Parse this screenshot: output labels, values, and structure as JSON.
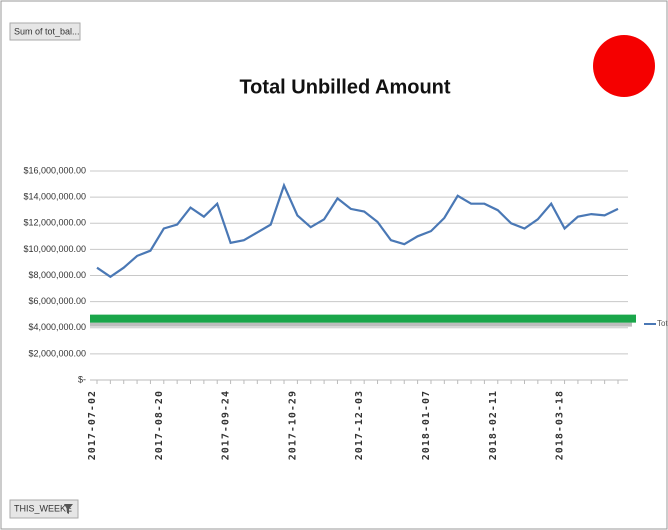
{
  "field_button": "Sum of tot_bal...",
  "filter_button": "THIS_WEEKE",
  "chart_data": {
    "type": "line",
    "title": "Total Unbilled Amount",
    "categories": [
      "2017-07-02",
      null,
      null,
      null,
      null,
      "2017-08-20",
      null,
      null,
      null,
      null,
      "2017-09-24",
      null,
      null,
      null,
      null,
      "2017-10-29",
      null,
      null,
      null,
      null,
      "2017-12-03",
      null,
      null,
      null,
      null,
      "2018-01-07",
      null,
      null,
      null,
      null,
      "2018-02-11",
      null,
      null,
      null,
      null,
      "2018-03-18",
      null,
      null,
      null,
      null
    ],
    "series": [
      {
        "name": "Tot",
        "color": "#4a78b5",
        "values": [
          8600000,
          7900000,
          8600000,
          9500000,
          9900000,
          11600000,
          11900000,
          13200000,
          12500000,
          13500000,
          10500000,
          10700000,
          11300000,
          11900000,
          14900000,
          12600000,
          11700000,
          12300000,
          13900000,
          13100000,
          12900000,
          12100000,
          10700000,
          10400000,
          11000000,
          11400000,
          12400000,
          14100000,
          13500000,
          13500000,
          13000000,
          12000000,
          11600000,
          12300000,
          13500000,
          11600000,
          12500000,
          12700000,
          12600000,
          13100000
        ]
      }
    ],
    "ylim": [
      0,
      16000000
    ],
    "yticks": [
      {
        "value": 0,
        "label": "$-"
      },
      {
        "value": 2000000,
        "label": "$2,000,000.00"
      },
      {
        "value": 4000000,
        "label": "$4,000,000.00"
      },
      {
        "value": 6000000,
        "label": "$6,000,000.00"
      },
      {
        "value": 8000000,
        "label": "$8,000,000.00"
      },
      {
        "value": 10000000,
        "label": "$10,000,000.00"
      },
      {
        "value": 12000000,
        "label": "$12,000,000.00"
      },
      {
        "value": 14000000,
        "label": "$14,000,000.00"
      },
      {
        "value": 16000000,
        "label": "$16,000,000.00"
      }
    ],
    "grid": true,
    "reference_line": {
      "value": 4700000,
      "color": "#1aa64a"
    }
  }
}
